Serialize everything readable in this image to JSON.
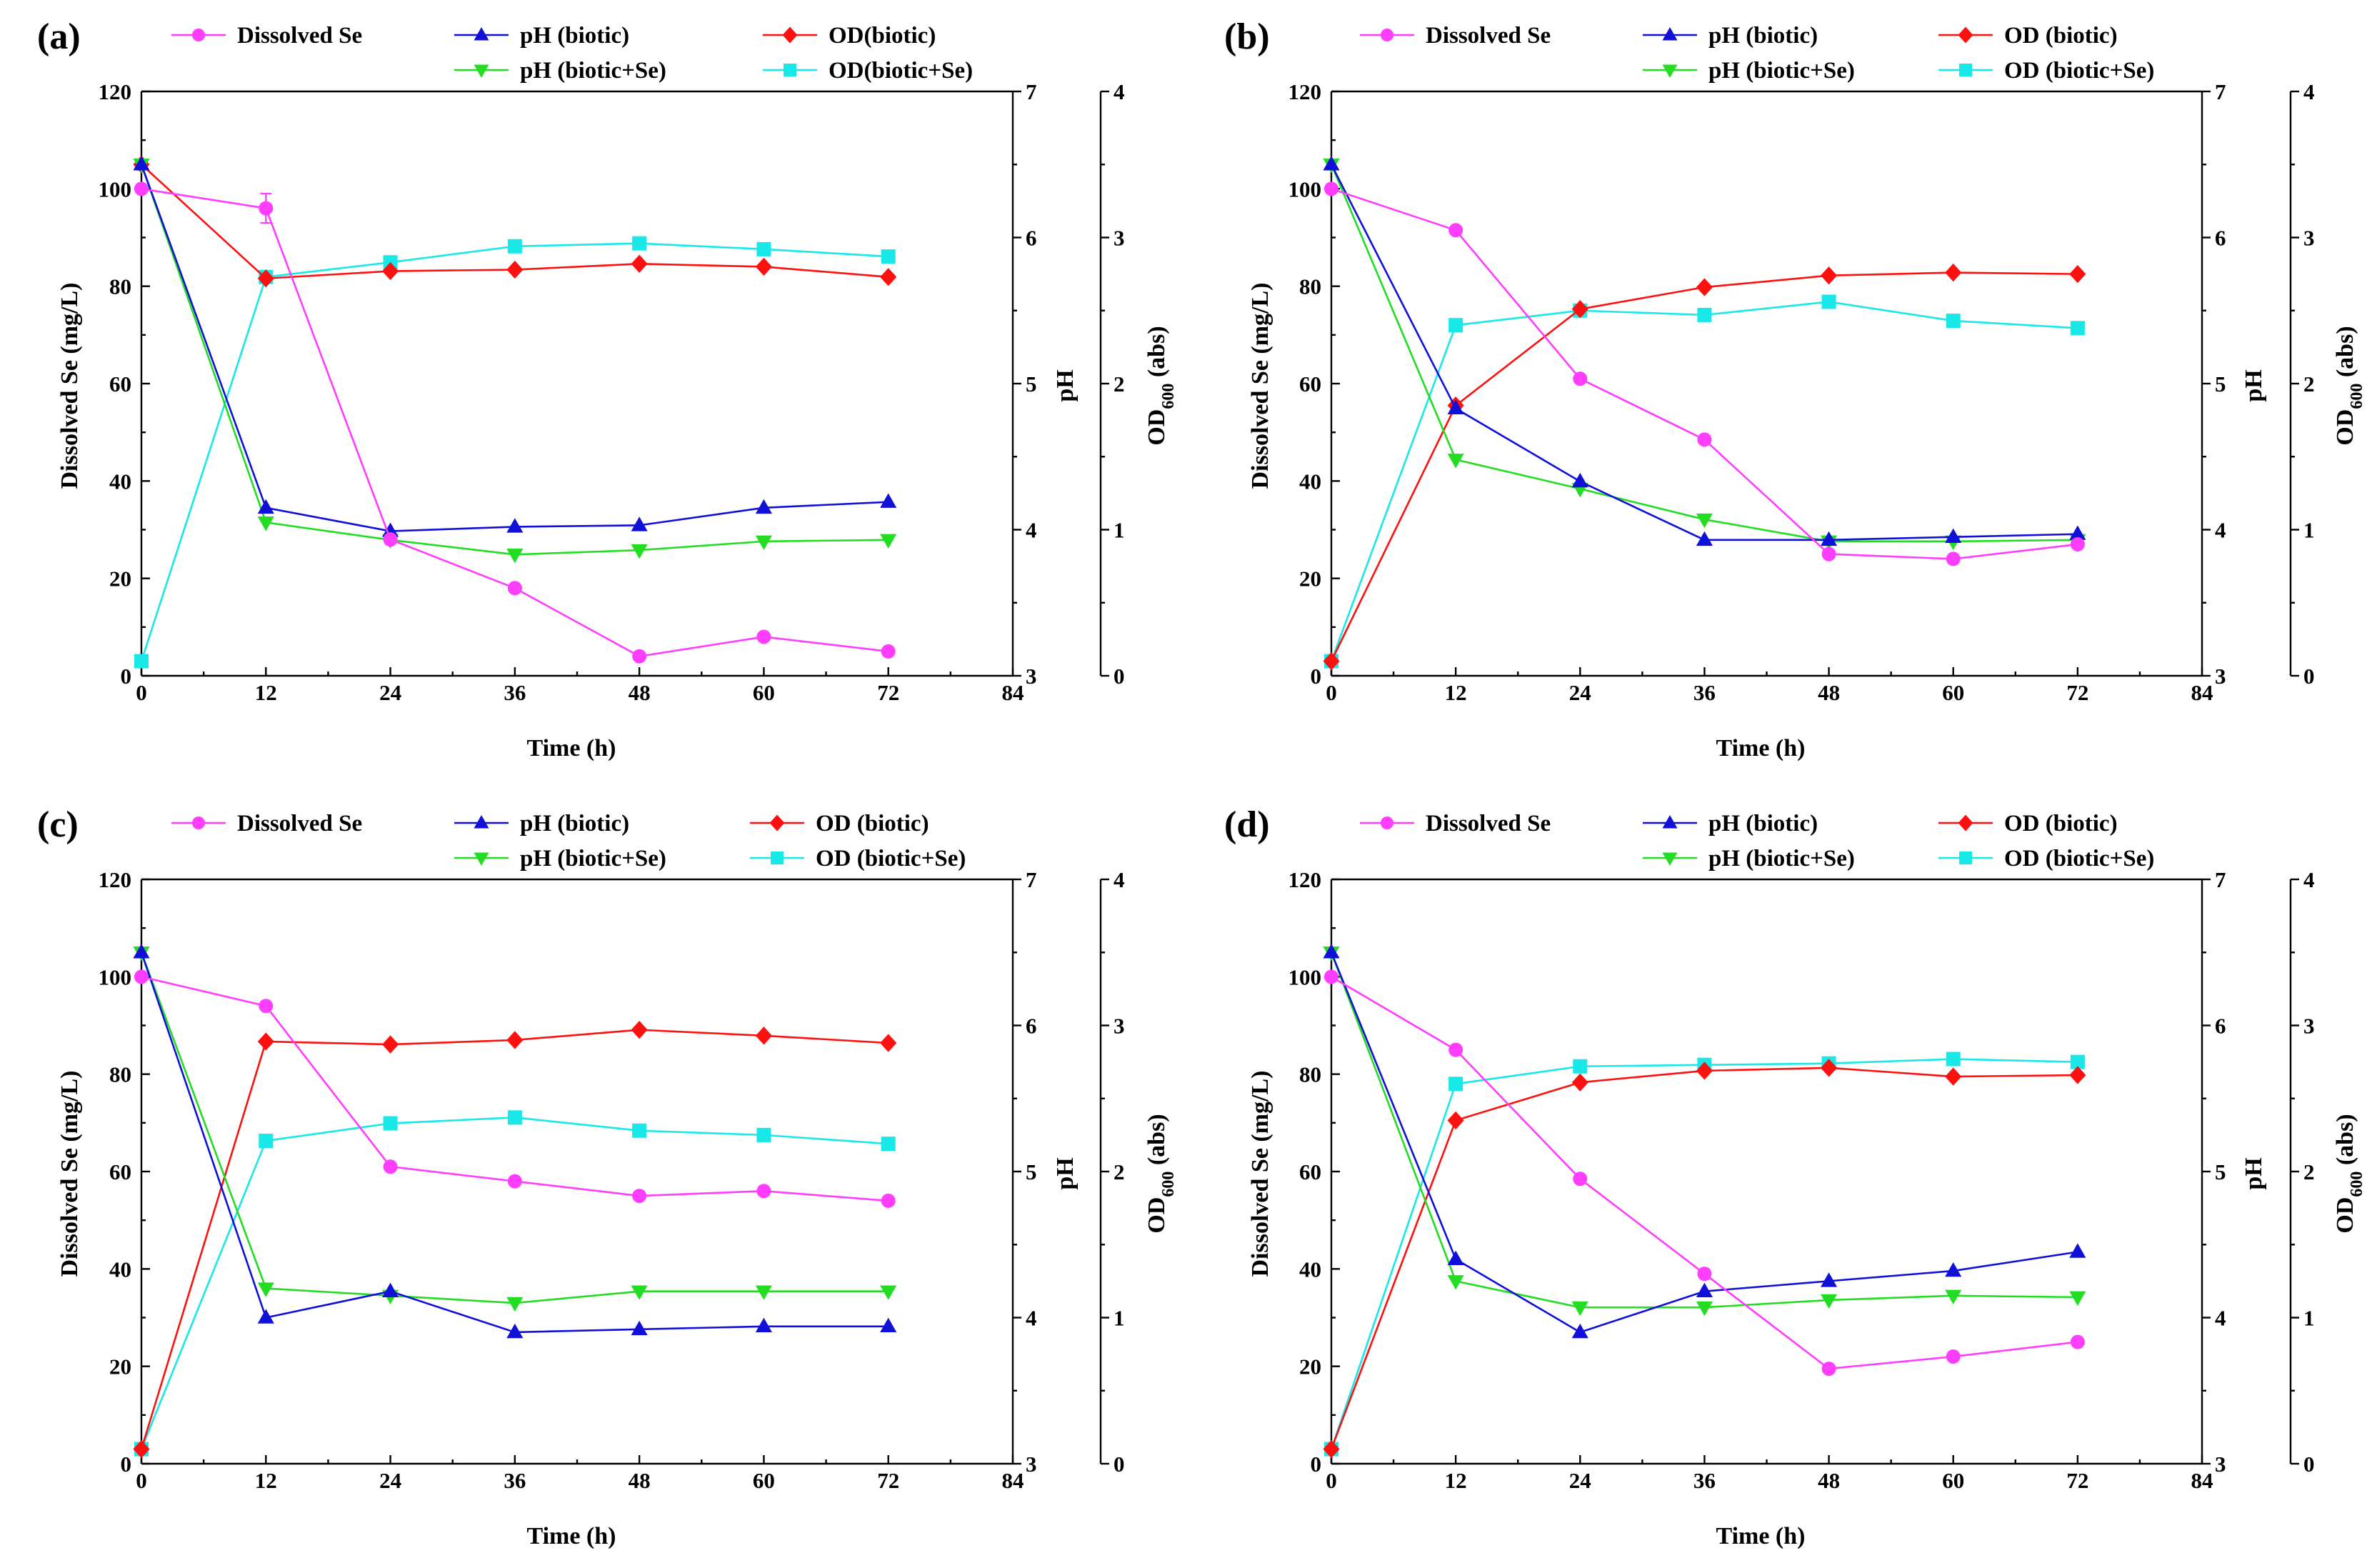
{
  "figure": {
    "legend_labels": {
      "se": "Dissolved Se",
      "ph_b": "pH (biotic)",
      "ph_bse": "pH (biotic+Se)"
    },
    "x_label": "Time (h)",
    "y_left_label": "Dissolved Se (mg/L)",
    "y_right_label": "pH",
    "y_od_label_main": "OD",
    "y_od_label_sub": "600",
    "y_od_label_suffix": " (abs)"
  },
  "colors": {
    "se": "#ff3dff",
    "ph_b": "#1010d8",
    "ph_bse": "#22dd22",
    "od_b": "#ff1010",
    "od_bse": "#18e8e8"
  },
  "chart_data": [
    {
      "type": "line",
      "panel": "(a)",
      "od_b_label": "OD(biotic)",
      "od_bse_label": "OD(biotic+Se)",
      "x": [
        0,
        12,
        24,
        36,
        48,
        60,
        72
      ],
      "xlim": [
        0,
        84
      ],
      "x_ticks": [
        0,
        12,
        24,
        36,
        48,
        60,
        72,
        84
      ],
      "y_left_lim": [
        0,
        120
      ],
      "y_left_ticks": [
        0,
        20,
        40,
        60,
        80,
        100,
        120
      ],
      "y_ph_lim": [
        3,
        7
      ],
      "y_ph_ticks": [
        3,
        4,
        5,
        6,
        7
      ],
      "y_od_lim": [
        0,
        4
      ],
      "y_od_ticks": [
        0,
        1,
        2,
        3,
        4
      ],
      "se_error_bar_at_12h": [
        93,
        99
      ],
      "series": {
        "se": [
          100,
          96,
          28,
          18,
          4,
          8,
          5
        ],
        "ph_b": [
          6.5,
          4.15,
          3.99,
          4.02,
          4.03,
          4.15,
          4.19
        ],
        "ph_bse": [
          6.5,
          4.05,
          3.93,
          3.83,
          3.86,
          3.92,
          3.93
        ],
        "od_b": [
          3.5,
          2.72,
          2.77,
          2.78,
          2.82,
          2.8,
          2.73
        ],
        "od_bse": [
          0.1,
          2.73,
          2.83,
          2.94,
          2.96,
          2.92,
          2.87
        ]
      }
    },
    {
      "type": "line",
      "panel": "(b)",
      "od_b_label": "OD (biotic)",
      "od_bse_label": "OD (biotic+Se)",
      "x": [
        0,
        12,
        24,
        36,
        48,
        60,
        72
      ],
      "xlim": [
        0,
        84
      ],
      "x_ticks": [
        0,
        12,
        24,
        36,
        48,
        60,
        72,
        84
      ],
      "y_left_lim": [
        0,
        120
      ],
      "y_left_ticks": [
        0,
        20,
        40,
        60,
        80,
        100,
        120
      ],
      "y_ph_lim": [
        3,
        7
      ],
      "y_ph_ticks": [
        3,
        4,
        5,
        6,
        7
      ],
      "y_od_lim": [
        0,
        4
      ],
      "y_od_ticks": [
        0,
        1,
        2,
        3,
        4
      ],
      "series": {
        "se": [
          100,
          91.5,
          61,
          48.5,
          25,
          24,
          27
        ],
        "ph_b": [
          6.5,
          4.83,
          4.33,
          3.93,
          3.93,
          3.95,
          3.97
        ],
        "ph_bse": [
          6.5,
          4.48,
          4.28,
          4.07,
          3.92,
          3.92,
          3.93
        ],
        "od_b": [
          0.1,
          1.85,
          2.51,
          2.66,
          2.74,
          2.76,
          2.75
        ],
        "od_bse": [
          0.1,
          2.4,
          2.5,
          2.47,
          2.56,
          2.43,
          2.38
        ]
      }
    },
    {
      "type": "line",
      "panel": "(c)",
      "od_b_label": "OD (biotic)",
      "od_bse_label": "OD (biotic+Se)",
      "x": [
        0,
        12,
        24,
        36,
        48,
        60,
        72
      ],
      "xlim": [
        0,
        84
      ],
      "x_ticks": [
        0,
        12,
        24,
        36,
        48,
        60,
        72,
        84
      ],
      "y_left_lim": [
        0,
        120
      ],
      "y_left_ticks": [
        0,
        20,
        40,
        60,
        80,
        100,
        120
      ],
      "y_ph_lim": [
        3,
        7
      ],
      "y_ph_ticks": [
        3,
        4,
        5,
        6,
        7
      ],
      "y_od_lim": [
        0,
        4
      ],
      "y_od_ticks": [
        0,
        1,
        2,
        3,
        4
      ],
      "series": {
        "se": [
          100,
          94,
          61,
          58,
          55,
          56,
          54
        ],
        "ph_b": [
          6.5,
          4.0,
          4.18,
          3.9,
          3.92,
          3.94,
          3.94
        ],
        "ph_bse": [
          6.5,
          4.2,
          4.15,
          4.1,
          4.18,
          4.18,
          4.18
        ],
        "od_b": [
          0.1,
          2.89,
          2.87,
          2.9,
          2.97,
          2.93,
          2.88
        ],
        "od_bse": [
          0.1,
          2.21,
          2.33,
          2.37,
          2.28,
          2.25,
          2.19
        ]
      }
    },
    {
      "type": "line",
      "panel": "(d)",
      "od_b_label": "OD (biotic)",
      "od_bse_label": "OD (biotic+Se)",
      "x": [
        0,
        12,
        24,
        36,
        48,
        60,
        72
      ],
      "xlim": [
        0,
        84
      ],
      "x_ticks": [
        0,
        12,
        24,
        36,
        48,
        60,
        72,
        84
      ],
      "y_left_lim": [
        0,
        120
      ],
      "y_left_ticks": [
        0,
        20,
        40,
        60,
        80,
        100,
        120
      ],
      "y_ph_lim": [
        3,
        7
      ],
      "y_ph_ticks": [
        3,
        4,
        5,
        6,
        7
      ],
      "y_od_lim": [
        0,
        4
      ],
      "y_od_ticks": [
        0,
        1,
        2,
        3,
        4
      ],
      "series": {
        "se": [
          100,
          85,
          58.5,
          39,
          19.5,
          22,
          25
        ],
        "ph_b": [
          6.5,
          4.4,
          3.9,
          4.18,
          4.25,
          4.32,
          4.45
        ],
        "ph_bse": [
          6.5,
          4.25,
          4.07,
          4.07,
          4.12,
          4.15,
          4.14
        ],
        "od_b": [
          0.1,
          2.35,
          2.61,
          2.69,
          2.71,
          2.65,
          2.66
        ],
        "od_bse": [
          0.1,
          2.6,
          2.72,
          2.73,
          2.74,
          2.77,
          2.75
        ]
      }
    }
  ]
}
